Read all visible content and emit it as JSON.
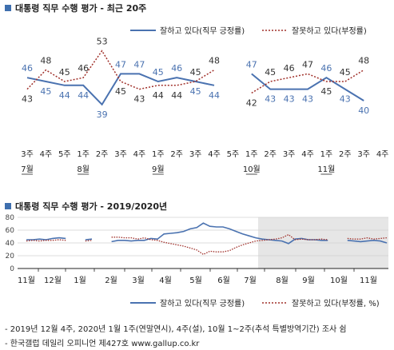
{
  "chart_data": [
    {
      "type": "line",
      "title": "대통령 직무 수행 평가 - 최근 20주",
      "week_labels": [
        "3주",
        "4주",
        "5주",
        "1주",
        "2주",
        "3주",
        "4주",
        "1주",
        "2주",
        "3주",
        "4주",
        "5주",
        "1주",
        "2주",
        "3주",
        "4주",
        "1주",
        "2주",
        "3주",
        "4주"
      ],
      "month_labels": [
        {
          "index": 0,
          "label": "7월"
        },
        {
          "index": 3,
          "label": "8월"
        },
        {
          "index": 7,
          "label": "9월"
        },
        {
          "index": 12,
          "label": "10월"
        },
        {
          "index": 16,
          "label": "11월"
        }
      ],
      "series": [
        {
          "name": "잘하고 있다(직무 긍정률)",
          "color": "#4a72b0",
          "style": "solid",
          "values": [
            46,
            45,
            44,
            44,
            39,
            47,
            47,
            45,
            46,
            45,
            44,
            null,
            47,
            43,
            43,
            43,
            46,
            43,
            40,
            null
          ]
        },
        {
          "name": "잘못하고 있다(부정률)",
          "color": "#a0302a",
          "style": "dotted",
          "values": [
            43,
            48,
            45,
            46,
            53,
            45,
            43,
            44,
            44,
            45,
            48,
            null,
            42,
            45,
            46,
            47,
            45,
            45,
            48,
            null
          ]
        }
      ],
      "series_values_display": {
        "positive": [
          46,
          45,
          44,
          44,
          39,
          47,
          47,
          45,
          46,
          45,
          44,
          null,
          47,
          43,
          43,
          43,
          46,
          43,
          40,
          null
        ],
        "negative": [
          43,
          48,
          45,
          46,
          53,
          45,
          43,
          44,
          44,
          45,
          48,
          null,
          42,
          45,
          46,
          47,
          45,
          45,
          48,
          null
        ]
      },
      "ylim": [
        0,
        100
      ],
      "grid": false,
      "legend": "top-right"
    },
    {
      "type": "line",
      "title": "대통령 직무 수행 평가 - 2019/2020년",
      "month_labels": [
        "11월",
        "12월",
        "1월",
        "2월",
        "3월",
        "4월",
        "5월",
        "6월",
        "7월",
        "8월",
        "9월",
        "10월",
        "11월"
      ],
      "yticks": [
        0,
        20,
        40,
        60,
        80
      ],
      "ylim": [
        0,
        80
      ],
      "series": [
        {
          "name": "잘하고 있다(직무 긍정률)",
          "color": "#4a72b0",
          "style": "solid",
          "values": [
            45,
            45,
            46,
            45,
            47,
            48,
            47,
            null,
            null,
            45,
            46,
            null,
            null,
            42,
            44,
            44,
            43,
            44,
            44,
            47,
            46,
            54,
            55,
            56,
            58,
            62,
            64,
            71,
            66,
            65,
            65,
            62,
            58,
            54,
            51,
            48,
            46,
            45,
            44,
            43,
            39,
            46,
            47,
            45,
            45,
            44,
            44,
            null,
            null,
            44,
            43,
            42,
            43,
            44,
            43,
            40
          ]
        },
        {
          "name": "잘못하고 있다(부정률)",
          "color": "#a0302a",
          "style": "dotted",
          "values": [
            43,
            44,
            43,
            44,
            44,
            45,
            44,
            null,
            null,
            43,
            44,
            null,
            null,
            49,
            49,
            48,
            48,
            46,
            48,
            45,
            44,
            41,
            39,
            37,
            35,
            32,
            29,
            22,
            27,
            26,
            26,
            28,
            33,
            37,
            40,
            43,
            44,
            45,
            46,
            48,
            53,
            45,
            46,
            45,
            45,
            46,
            45,
            null,
            null,
            47,
            46,
            46,
            48,
            46,
            47,
            48
          ]
        }
      ],
      "grid": true,
      "legend": "bottom"
    }
  ],
  "legend": {
    "positive": "잘하고 있다(직무 긍정률)",
    "negative": "잘못하고 있다(부정률, %)"
  },
  "footnotes": [
    "- 2019년 12월 4주, 2020년 1월 1주(연말연시), 4주(설), 10월 1~2주(추석 특별방역기간) 조사 쉼",
    "- 한국갤럽 데일리 오피니언 제427호 www.gallup.co.kr"
  ],
  "colors": {
    "positive": "#4a72b0",
    "negative": "#a0302a",
    "accent": "#3e6fae"
  }
}
